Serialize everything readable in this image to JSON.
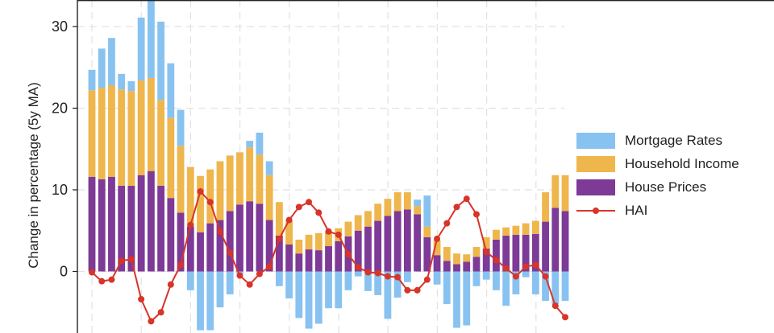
{
  "chart_data": {
    "type": "bar",
    "stacked": true,
    "title": "",
    "xlabel": "",
    "ylabel": "Change in percentage (5y MA)",
    "ylim": [
      -7.3,
      33
    ],
    "yticks": [
      0,
      10,
      20,
      30
    ],
    "grid": true,
    "legend_position": "right",
    "colors": {
      "mortgage_rates": "#88c2f0",
      "household_income": "#eeb64c",
      "house_prices": "#7d3a96",
      "hai": "#d8342a"
    },
    "series": [
      {
        "name": "House Prices",
        "key": "house_prices",
        "values": [
          11.6,
          11.3,
          11.6,
          10.5,
          10.5,
          11.8,
          12.3,
          10.5,
          9.0,
          7.2,
          5.5,
          4.8,
          5.9,
          6.3,
          7.4,
          8.2,
          8.6,
          8.3,
          6.3,
          4.4,
          3.3,
          2.2,
          2.7,
          2.6,
          3.1,
          3.7,
          4.3,
          5.0,
          5.5,
          6.2,
          6.8,
          7.4,
          7.6,
          7.0,
          4.2,
          2.0,
          1.3,
          0.9,
          1.2,
          1.8,
          2.8,
          3.9,
          4.4,
          4.5,
          4.5,
          4.6,
          6.1,
          7.8,
          7.4
        ]
      },
      {
        "name": "Household Income",
        "key": "household_income",
        "values": [
          10.6,
          11.2,
          11.2,
          11.8,
          11.6,
          11.6,
          11.4,
          10.5,
          9.8,
          8.2,
          7.3,
          6.9,
          6.6,
          7.2,
          6.8,
          6.4,
          6.6,
          6.0,
          5.5,
          4.1,
          2.9,
          1.7,
          1.8,
          2.1,
          1.8,
          1.6,
          1.8,
          1.9,
          1.9,
          2.1,
          2.1,
          2.3,
          2.1,
          1.0,
          1.3,
          1.8,
          1.7,
          1.3,
          0.9,
          1.2,
          1.4,
          1.2,
          1.0,
          1.1,
          1.4,
          1.6,
          3.6,
          4.0,
          4.4
        ]
      },
      {
        "name": "Mortgage Rates",
        "key": "mortgage_rates",
        "values": [
          2.5,
          4.8,
          5.8,
          1.9,
          1.2,
          7.7,
          9.9,
          9.6,
          6.7,
          4.4,
          -2.3,
          -7.2,
          -7.2,
          -4.4,
          -2.8,
          -0.3,
          0.8,
          2.7,
          1.7,
          -1.8,
          -3.3,
          -5.7,
          -7.0,
          -6.4,
          -4.5,
          -4.5,
          -2.3,
          -0.6,
          -2.4,
          -2.9,
          -5.8,
          -3.2,
          -1.3,
          0.8,
          3.8,
          -1.6,
          -4.0,
          -6.9,
          -6.6,
          -1.8,
          -1.0,
          -2.3,
          -4.2,
          -2.8,
          -0.7,
          -2.8,
          -3.6,
          -4.0,
          -3.6
        ]
      },
      {
        "name": "HAI",
        "key": "hai",
        "type": "line",
        "values": [
          -0.1,
          -1.2,
          -1.0,
          1.3,
          1.5,
          -3.4,
          -6.1,
          -5.0,
          -1.6,
          0.8,
          5.7,
          9.8,
          8.5,
          4.9,
          2.3,
          -0.5,
          -1.6,
          -0.3,
          0.6,
          4.0,
          6.3,
          7.9,
          8.5,
          7.2,
          4.9,
          4.5,
          2.1,
          0.5,
          -0.1,
          -0.2,
          -0.6,
          -0.7,
          -2.3,
          -2.3,
          -1.0,
          4.0,
          5.9,
          7.9,
          8.9,
          7.0,
          2.4,
          1.4,
          0.4,
          -0.6,
          0.6,
          0.8,
          -0.6,
          -4.2,
          -5.6
        ]
      }
    ],
    "legend": [
      "Mortgage Rates",
      "Household Income",
      "House Prices",
      "HAI"
    ]
  }
}
